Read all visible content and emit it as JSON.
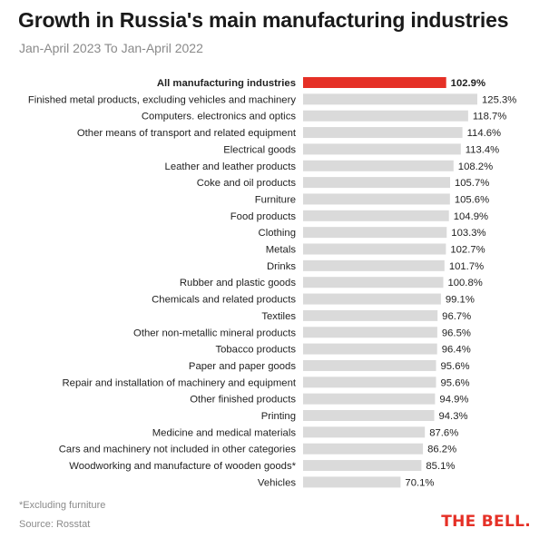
{
  "header": {
    "title": "Growth in Russia's main manufacturing industries",
    "subtitle": "Jan-April 2023 To Jan-April 2022"
  },
  "footer": {
    "note": "*Excluding furniture",
    "source": "Source: Rosstat",
    "logo": "THE BELL."
  },
  "colors": {
    "highlight": "#e53026",
    "bar": "#dadada",
    "text": "#222222",
    "muted": "#8a8a8a"
  },
  "chart_data": {
    "type": "bar",
    "orientation": "horizontal",
    "highlight_category": "All manufacturing industries",
    "categories": [
      "All manufacturing industries",
      "Finished metal products, excluding vehicles and machinery",
      "Computers. electronics and optics",
      "Other means of transport and related equipment",
      "Electrical goods",
      "Leather and leather products",
      "Coke and oil products",
      "Furniture",
      "Food products",
      "Clothing",
      "Metals",
      "Drinks",
      "Rubber and plastic goods",
      "Chemicals and related products",
      "Textiles",
      "Other non-metallic mineral products",
      "Tobacco products",
      "Paper and paper goods",
      "Repair and installation of machinery and equipment",
      "Other finished products",
      "Printing",
      "Medicine and medical materials",
      "Cars and machinery not included in other categories",
      "Woodworking and manufacture of wooden goods*",
      "Vehicles"
    ],
    "values": [
      102.9,
      125.3,
      118.7,
      114.6,
      113.4,
      108.2,
      105.7,
      105.6,
      104.9,
      103.3,
      102.7,
      101.7,
      100.8,
      99.1,
      96.7,
      96.5,
      96.4,
      95.6,
      95.6,
      94.9,
      94.3,
      87.6,
      86.2,
      85.1,
      70.1
    ],
    "value_labels": [
      "102.9%",
      "125.3%",
      "118.7%",
      "114.6%",
      "113.4%",
      "108.2%",
      "105.7%",
      "105.6%",
      "104.9%",
      "103.3%",
      "102.7%",
      "101.7%",
      "100.8%",
      "99.1%",
      "96.7%",
      "96.5%",
      "96.4%",
      "95.6%",
      "95.6%",
      "94.9%",
      "94.3%",
      "87.6%",
      "86.2%",
      "85.1%",
      "70.1%"
    ],
    "xlim": [
      0,
      125.3
    ],
    "xlabel": "",
    "ylabel": "",
    "grid": false,
    "legend": "none"
  }
}
